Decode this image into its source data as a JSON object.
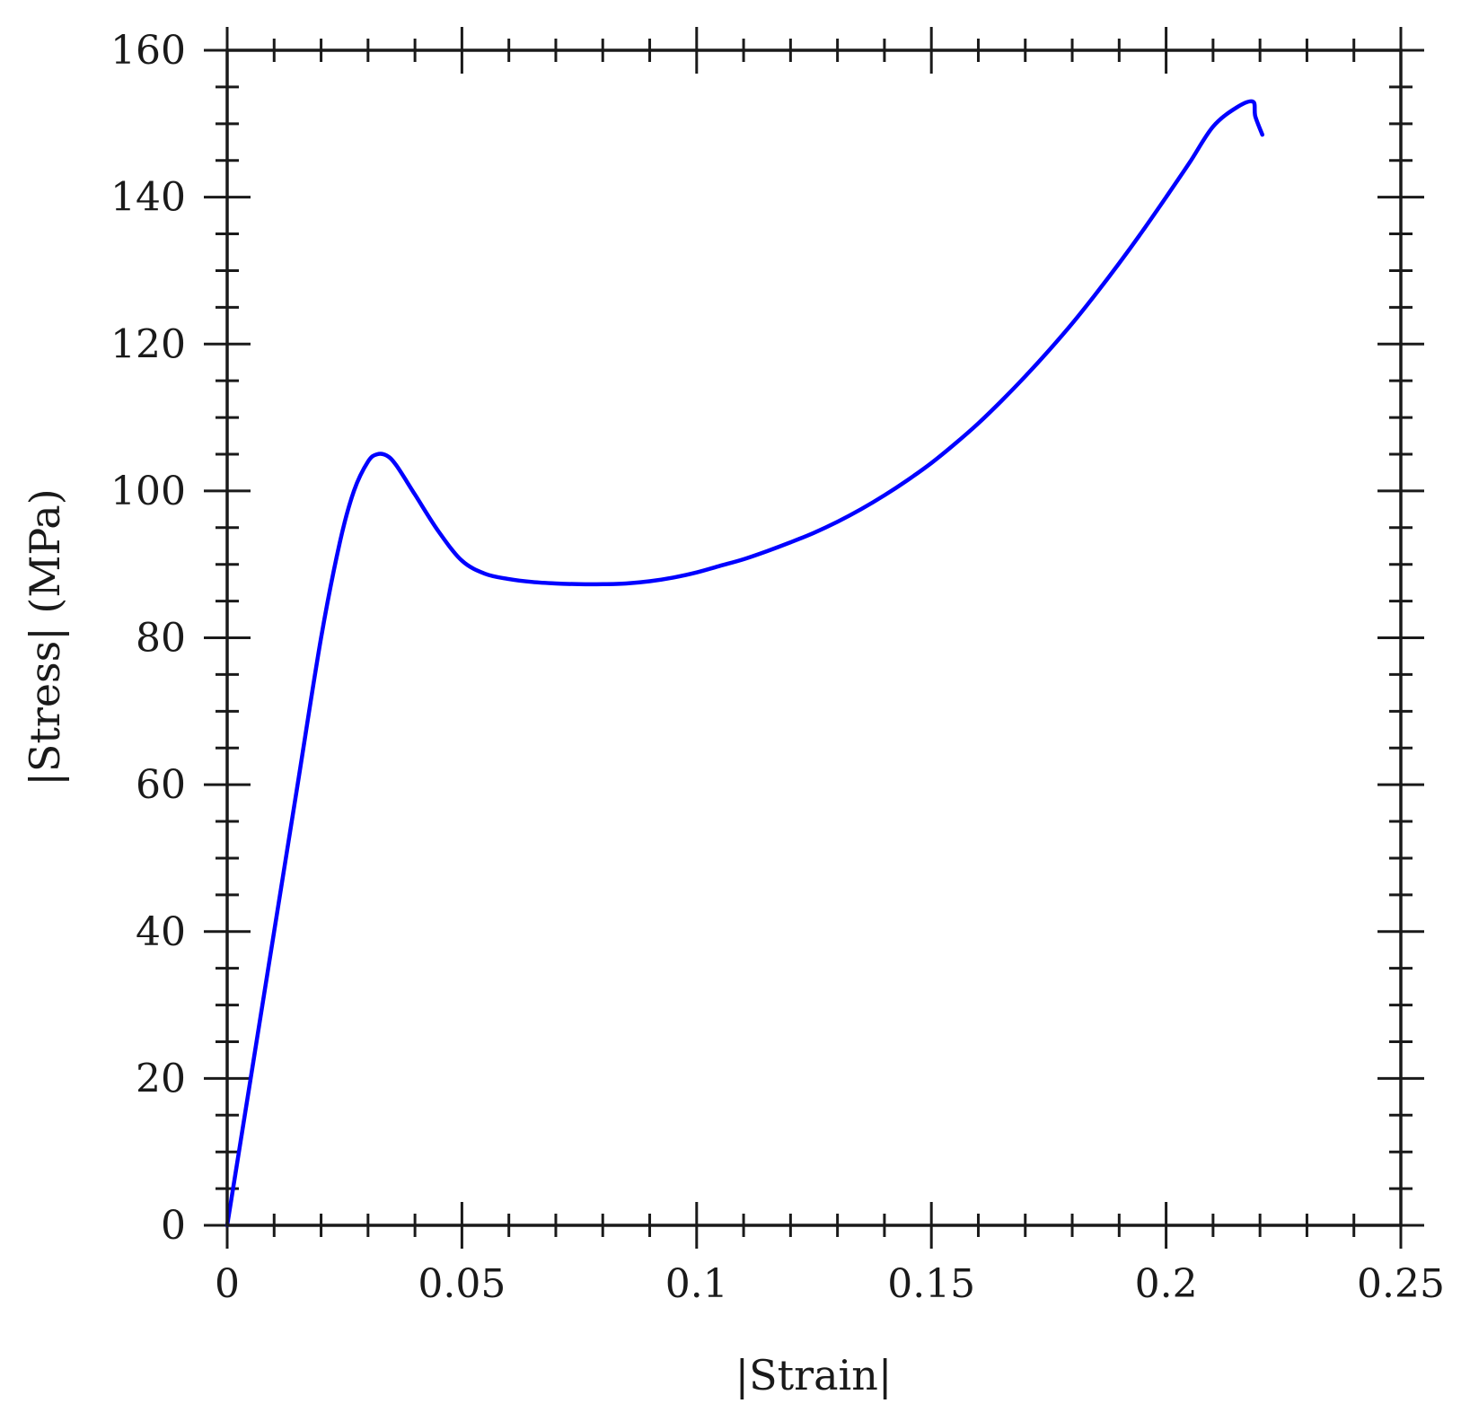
{
  "chart_data": {
    "type": "line",
    "title": "",
    "xlabel": "|Strain|",
    "ylabel": "|Stress| (MPa)",
    "xlim": [
      0,
      0.25
    ],
    "ylim": [
      0,
      160
    ],
    "xticks": [
      0,
      0.05,
      0.1,
      0.15,
      0.2,
      0.25
    ],
    "xtick_labels": [
      "0",
      "0.05",
      "0.1",
      "0.15",
      "0.2",
      "0.25"
    ],
    "yticks": [
      0,
      20,
      40,
      60,
      80,
      100,
      120,
      140,
      160
    ],
    "ytick_labels": [
      "0",
      "20",
      "40",
      "60",
      "80",
      "100",
      "120",
      "140",
      "160"
    ],
    "x_minor_step": 0.01,
    "y_minor_step": 5,
    "grid": false,
    "legend": "none",
    "series": [
      {
        "color": "#0000ff",
        "x": [
          0,
          0.005,
          0.01,
          0.015,
          0.02,
          0.024,
          0.027,
          0.03,
          0.032,
          0.034,
          0.036,
          0.04,
          0.045,
          0.05,
          0.055,
          0.06,
          0.065,
          0.07,
          0.075,
          0.08,
          0.085,
          0.09,
          0.095,
          0.1,
          0.105,
          0.11,
          0.115,
          0.12,
          0.125,
          0.13,
          0.135,
          0.14,
          0.145,
          0.15,
          0.155,
          0.16,
          0.165,
          0.17,
          0.175,
          0.18,
          0.185,
          0.19,
          0.195,
          0.2,
          0.205,
          0.21,
          0.215,
          0.2185,
          0.219,
          0.2205
        ],
        "y": [
          0,
          20,
          40,
          60,
          80,
          93,
          100,
          104,
          105,
          104.8,
          103.5,
          99.5,
          94.5,
          90.5,
          88.7,
          88.0,
          87.6,
          87.4,
          87.3,
          87.3,
          87.4,
          87.7,
          88.2,
          88.9,
          89.8,
          90.7,
          91.8,
          93.0,
          94.3,
          95.8,
          97.5,
          99.4,
          101.5,
          103.8,
          106.4,
          109.2,
          112.3,
          115.6,
          119.1,
          122.8,
          126.8,
          131.0,
          135.4,
          140.0,
          144.7,
          149.6,
          152.2,
          153.0,
          151.0,
          148.5
        ]
      }
    ]
  }
}
